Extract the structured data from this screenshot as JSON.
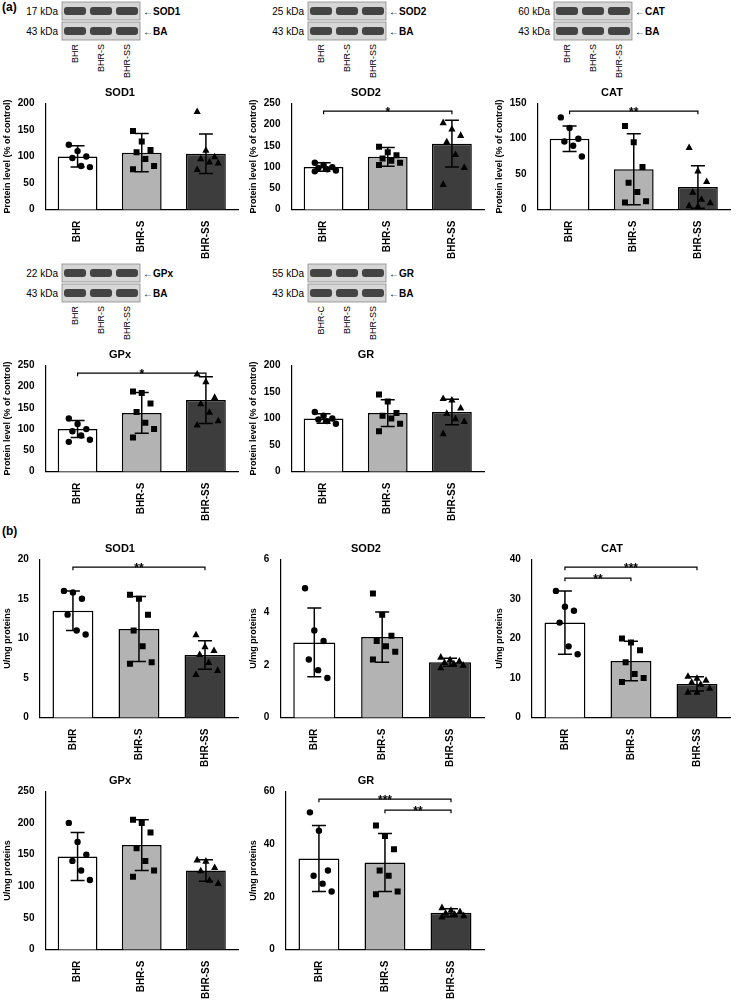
{
  "panel_labels": [
    "(a)",
    "(b)"
  ],
  "chart_data": [
    {
      "type": "bar",
      "title": "SOD1",
      "y_label": "Protein level (% of control)",
      "grid": false,
      "blot": {
        "rows": [
          {
            "mw": "17 kDa",
            "label": "←SOD1"
          },
          {
            "mw": "43 kDa",
            "label": "←BA"
          }
        ],
        "lanes": [
          "BHR",
          "BHR-S",
          "BHR-SS"
        ]
      },
      "categories": [
        "BHR",
        "BHR-S",
        "BHR-SS"
      ],
      "values": [
        100,
        107,
        105
      ],
      "error": [
        20,
        36,
        37
      ],
      "points": [
        [
          122,
          110,
          100,
          97,
          82,
          80
        ],
        [
          148,
          128,
          112,
          108,
          95,
          82,
          76
        ],
        [
          185,
          112,
          100,
          96,
          90,
          88,
          76
        ]
      ],
      "colors": [
        "#ffffff",
        "#b3b3b3",
        "#3d3d3d"
      ],
      "ylim": [
        0,
        200
      ],
      "yticks": [
        0,
        50,
        100,
        150,
        200
      ],
      "significance": []
    },
    {
      "type": "bar",
      "title": "SOD2",
      "y_label": "Protein level (% of control)",
      "grid": false,
      "blot": {
        "rows": [
          {
            "mw": "25 kDa",
            "label": "←SOD2"
          },
          {
            "mw": "43 kDa",
            "label": "←BA"
          }
        ],
        "lanes": [
          "BHR",
          "BHR-S",
          "BHR-SS"
        ]
      },
      "categories": [
        "BHR",
        "BHR-S",
        "BHR-SS"
      ],
      "values": [
        100,
        124,
        155
      ],
      "error": [
        10,
        22,
        55
      ],
      "points": [
        [
          110,
          105,
          100,
          98,
          95,
          92,
          90
        ],
        [
          148,
          135,
          128,
          120,
          115,
          110,
          105
        ],
        [
          205,
          190,
          175,
          160,
          130,
          100,
          60
        ]
      ],
      "colors": [
        "#ffffff",
        "#b3b3b3",
        "#3d3d3d"
      ],
      "ylim": [
        0,
        250
      ],
      "yticks": [
        0,
        50,
        100,
        150,
        200,
        250
      ],
      "significance": [
        {
          "between": [
            "BHR",
            "BHR-SS"
          ],
          "label": "*"
        }
      ]
    },
    {
      "type": "bar",
      "title": "CAT",
      "y_label": "Protein level (% of control)",
      "grid": false,
      "blot": {
        "rows": [
          {
            "mw": "60 kDa",
            "label": "←CAT"
          },
          {
            "mw": "43 kDa",
            "label": "←BA"
          }
        ],
        "lanes": [
          "BHR",
          "BHR-S",
          "BHR-SS"
        ]
      },
      "categories": [
        "BHR",
        "BHR-S",
        "BHR-SS"
      ],
      "values": [
        100,
        57,
        32
      ],
      "error": [
        18,
        50,
        30
      ],
      "points": [
        [
          130,
          115,
          100,
          96,
          90,
          75
        ],
        [
          118,
          95,
          60,
          38,
          25,
          12,
          10
        ],
        [
          88,
          55,
          40,
          25,
          15,
          10,
          6,
          5
        ]
      ],
      "colors": [
        "#ffffff",
        "#b3b3b3",
        "#3d3d3d"
      ],
      "ylim": [
        0,
        150
      ],
      "yticks": [
        0,
        50,
        100,
        150
      ],
      "significance": [
        {
          "between": [
            "BHR",
            "BHR-SS"
          ],
          "label": "**"
        }
      ]
    },
    {
      "type": "bar",
      "title": "GPx",
      "y_label": "Protein level (% of control)",
      "grid": false,
      "blot": {
        "rows": [
          {
            "mw": "22 kDa",
            "label": "←GPx"
          },
          {
            "mw": "43 kDa",
            "label": "←BA"
          }
        ],
        "lanes": [
          "BHR",
          "BHR-S",
          "BHR-SS"
        ]
      },
      "categories": [
        "BHR",
        "BHR-S",
        "BHR-SS"
      ],
      "values": [
        100,
        138,
        168
      ],
      "error": [
        20,
        48,
        55
      ],
      "points": [
        [
          125,
          112,
          100,
          95,
          85,
          75,
          70
        ],
        [
          188,
          185,
          160,
          140,
          115,
          100,
          80
        ],
        [
          230,
          212,
          175,
          160,
          140,
          120,
          110
        ]
      ],
      "colors": [
        "#ffffff",
        "#b3b3b3",
        "#3d3d3d"
      ],
      "ylim": [
        0,
        250
      ],
      "yticks": [
        0,
        50,
        100,
        150,
        200,
        250
      ],
      "significance": [
        {
          "between": [
            "BHR",
            "BHR-SS"
          ],
          "label": "*"
        }
      ]
    },
    {
      "type": "bar",
      "title": "GR",
      "y_label": "Protein level (% of control)",
      "grid": false,
      "blot": {
        "rows": [
          {
            "mw": "55 kDa",
            "label": "←GR"
          },
          {
            "mw": "43 kDa",
            "label": "←BA"
          }
        ],
        "lanes": [
          "BHR-C",
          "BHR-S",
          "BHR-SS"
        ]
      },
      "categories": [
        "BHR",
        "BHR-S",
        "BHR-SS"
      ],
      "values": [
        100,
        110,
        112
      ],
      "error": [
        9,
        25,
        24
      ],
      "points": [
        [
          112,
          105,
          100,
          98,
          95,
          90
        ],
        [
          145,
          132,
          110,
          105,
          100,
          90,
          76
        ],
        [
          138,
          135,
          120,
          110,
          100,
          95,
          72
        ]
      ],
      "colors": [
        "#ffffff",
        "#b3b3b3",
        "#3d3d3d"
      ],
      "ylim": [
        0,
        200
      ],
      "yticks": [
        0,
        50,
        100,
        150,
        200
      ],
      "significance": []
    },
    {
      "type": "bar",
      "title": "SOD1",
      "y_label": "U/mg proteins",
      "grid": false,
      "categories": [
        "BHR",
        "BHR-S",
        "BHR-SS"
      ],
      "values": [
        13.5,
        11.2,
        7.9
      ],
      "error": [
        2.5,
        4.1,
        1.8
      ],
      "points": [
        [
          16,
          15.8,
          15,
          13,
          11,
          10.5
        ],
        [
          15.5,
          15,
          13,
          11,
          9,
          7,
          6.8
        ],
        [
          10.5,
          9,
          8.5,
          8,
          7,
          6,
          5.5
        ]
      ],
      "colors": [
        "#ffffff",
        "#b3b3b3",
        "#3d3d3d"
      ],
      "ylim": [
        0,
        20
      ],
      "yticks": [
        0,
        5,
        10,
        15,
        20
      ],
      "significance": [
        {
          "between": [
            "BHR",
            "BHR-SS"
          ],
          "label": "**"
        }
      ]
    },
    {
      "type": "bar",
      "title": "SOD2",
      "y_label": "U/mg proteins",
      "grid": false,
      "categories": [
        "BHR",
        "BHR-S",
        "BHR-SS"
      ],
      "values": [
        2.85,
        3.05,
        2.1
      ],
      "error": [
        1.3,
        0.95,
        0.15
      ],
      "points": [
        [
          4.9,
          3.3,
          2.9,
          2.2,
          1.8,
          1.5
        ],
        [
          4.7,
          3.9,
          3.1,
          2.9,
          2.7,
          2.5,
          2.2
        ],
        [
          2.3,
          2.2,
          2.15,
          2.1,
          2.05,
          2.0,
          1.9
        ]
      ],
      "colors": [
        "#ffffff",
        "#b3b3b3",
        "#3d3d3d"
      ],
      "ylim": [
        0,
        6
      ],
      "yticks": [
        0,
        2,
        4,
        6
      ],
      "significance": []
    },
    {
      "type": "bar",
      "title": "CAT",
      "y_label": "U/mg proteins",
      "grid": false,
      "categories": [
        "BHR",
        "BHR-S",
        "BHR-SS"
      ],
      "values": [
        24,
        14.3,
        8.5
      ],
      "error": [
        8,
        5,
        1.8
      ],
      "points": [
        [
          32,
          28,
          27,
          24,
          18,
          16
        ],
        [
          20,
          19,
          17,
          14,
          11,
          10,
          9
        ],
        [
          10.5,
          10,
          9.5,
          9,
          8.5,
          7.5,
          6.5,
          6.5
        ]
      ],
      "colors": [
        "#ffffff",
        "#b3b3b3",
        "#3d3d3d"
      ],
      "ylim": [
        0,
        40
      ],
      "yticks": [
        0,
        10,
        20,
        30,
        40
      ],
      "significance": [
        {
          "between": [
            "BHR",
            "BHR-SS"
          ],
          "label": "***"
        },
        {
          "between": [
            "BHR",
            "BHR-S"
          ],
          "label": "**"
        }
      ]
    },
    {
      "type": "bar",
      "title": "GPx",
      "y_label": "U/mg proteins",
      "grid": false,
      "categories": [
        "BHR",
        "BHR-S",
        "BHR-SS"
      ],
      "values": [
        147,
        165,
        125
      ],
      "error": [
        38,
        40,
        17
      ],
      "points": [
        [
          200,
          170,
          150,
          140,
          125,
          110
        ],
        [
          205,
          200,
          185,
          160,
          140,
          125,
          115
        ],
        [
          142,
          140,
          130,
          125,
          110,
          105
        ]
      ],
      "colors": [
        "#ffffff",
        "#b3b3b3",
        "#3d3d3d"
      ],
      "ylim": [
        0,
        250
      ],
      "yticks": [
        0,
        50,
        100,
        150,
        200,
        250
      ],
      "significance": []
    },
    {
      "type": "bar",
      "title": "GR",
      "y_label": "U/mg proteins",
      "grid": false,
      "categories": [
        "BHR",
        "BHR-S",
        "BHR-SS"
      ],
      "values": [
        34.5,
        33,
        14
      ],
      "error": [
        12.5,
        11,
        1.5
      ],
      "points": [
        [
          52,
          45,
          30,
          28,
          25,
          22
        ],
        [
          47,
          43,
          38,
          30,
          28,
          22,
          21
        ],
        [
          16,
          15,
          14.5,
          14,
          13.5,
          13,
          12.5
        ]
      ],
      "colors": [
        "#ffffff",
        "#b3b3b3",
        "#3d3d3d"
      ],
      "ylim": [
        0,
        60
      ],
      "yticks": [
        0,
        20,
        40,
        60
      ],
      "significance": [
        {
          "between": [
            "BHR",
            "BHR-SS"
          ],
          "label": "***"
        },
        {
          "between": [
            "BHR-S",
            "BHR-SS"
          ],
          "label": "**"
        }
      ]
    }
  ]
}
